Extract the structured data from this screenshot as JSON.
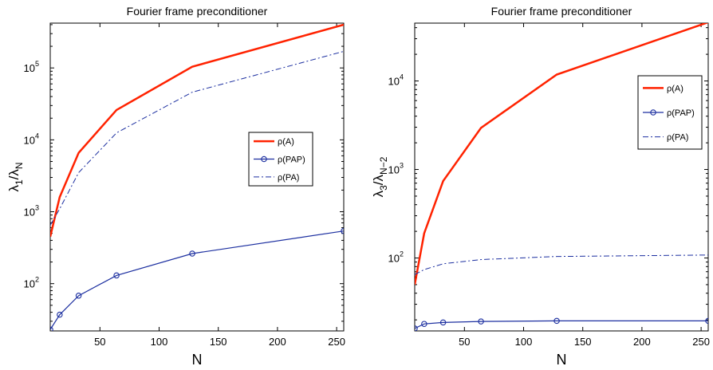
{
  "chart_data": [
    {
      "type": "line",
      "title": "Fourier frame preconditioner",
      "xlabel": "N",
      "ylabel": "λ1/λN",
      "yscale": "log",
      "xlim": [
        8,
        256
      ],
      "ylim": [
        22,
        420000
      ],
      "xticks": [
        50,
        100,
        150,
        200,
        250
      ],
      "yticks": [
        100,
        1000,
        10000,
        100000
      ],
      "legend_position": "right-middle",
      "x": [
        8,
        16,
        32,
        64,
        128,
        256
      ],
      "series": [
        {
          "name": "ρ(A)",
          "color": "#ff2200",
          "style": "solid-thick",
          "values": [
            450,
            1600,
            6600,
            26000,
            104000,
            400000
          ]
        },
        {
          "name": "ρ(PAP)",
          "color": "#1c2fa0",
          "style": "solid-circle",
          "values": [
            23,
            37,
            68,
            130,
            262,
            540
          ]
        },
        {
          "name": "ρ(PA)",
          "color": "#1c2fa0",
          "style": "dash-dot",
          "values": [
            650,
            1100,
            3500,
            12500,
            46000,
            170000
          ]
        }
      ]
    },
    {
      "type": "line",
      "title": "Fourier frame preconditioner",
      "xlabel": "N",
      "ylabel": "λ3/λN−2",
      "yscale": "log",
      "xlim": [
        8,
        256
      ],
      "ylim": [
        15,
        45000
      ],
      "xticks": [
        50,
        100,
        150,
        200,
        250
      ],
      "yticks": [
        100,
        1000,
        10000
      ],
      "legend_position": "top-right",
      "x": [
        8,
        16,
        32,
        64,
        128,
        256
      ],
      "series": [
        {
          "name": "ρ(A)",
          "color": "#ff2200",
          "style": "solid-thick",
          "values": [
            50,
            190,
            740,
            2950,
            11800,
            46000
          ]
        },
        {
          "name": "ρ(PAP)",
          "color": "#1c2fa0",
          "style": "solid-circle",
          "values": [
            16,
            18,
            18.7,
            19.2,
            19.5,
            19.5
          ]
        },
        {
          "name": "ρ(PA)",
          "color": "#1c2fa0",
          "style": "dash-dot",
          "values": [
            65,
            74,
            86,
            96,
            104,
            108
          ]
        }
      ]
    }
  ]
}
